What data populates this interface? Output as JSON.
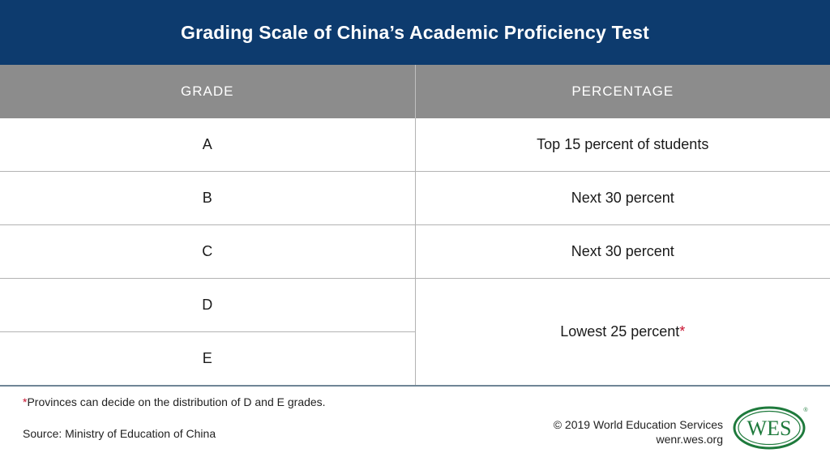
{
  "title": "Grading Scale of China’s Academic Proficiency Test",
  "table": {
    "headers": [
      "GRADE",
      "PERCENTAGE"
    ],
    "rows": [
      {
        "grade": "A",
        "percentage": "Top 15 percent of students"
      },
      {
        "grade": "B",
        "percentage": "Next 30 percent"
      },
      {
        "grade": "C",
        "percentage": "Next 30 percent"
      },
      {
        "grade": "D",
        "percentage": "Lowest 25 percent"
      },
      {
        "grade": "E"
      }
    ],
    "merged_marker": "*"
  },
  "footnote": {
    "marker": "*",
    "text": "Provinces can decide on the distribution of D and E grades."
  },
  "source": "Source: Ministry of Education of China",
  "credit": {
    "copyright": "© 2019 World Education Services",
    "site": "wenr.wes.org"
  },
  "logo": {
    "text": "WES",
    "registered": "®",
    "color": "#1e7a3c"
  },
  "colors": {
    "title_bar": "#0d3b6e",
    "header_row": "#8c8c8c",
    "asterisk": "#c8102e"
  }
}
